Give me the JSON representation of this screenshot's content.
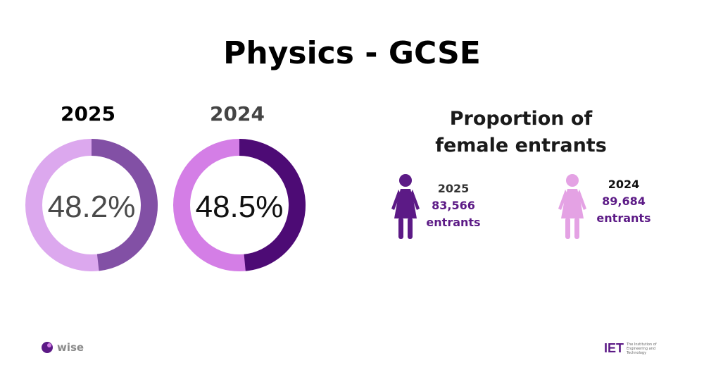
{
  "title": "Physics - GCSE",
  "colors": {
    "c2025_light": "#dca8ee",
    "c2025_dark": "#8250a5",
    "c2024_light": "#d47ee6",
    "c2024_dark": "#4d0b75",
    "figure_2025": "#5c1a86",
    "figure_2024": "#e4a2e4",
    "number_text": "#5c1a86"
  },
  "chart_data": [
    {
      "type": "pie",
      "title": "2025",
      "center_label": "48.2%",
      "values": [
        48.2,
        51.8
      ]
    },
    {
      "type": "pie",
      "title": "2024",
      "center_label": "48.5%",
      "values": [
        48.5,
        51.5
      ]
    }
  ],
  "proportion": {
    "title_line1": "Proportion of",
    "title_line2": "female entrants",
    "items": [
      {
        "year": "2025",
        "count": "83,566",
        "unit": "entrants"
      },
      {
        "year": "2024",
        "count": "89,684",
        "unit": "entrants"
      }
    ]
  },
  "footer": {
    "wise": "wise",
    "iet": "IET",
    "iet_sub_line1": "The Institution of",
    "iet_sub_line2": "Engineering and Technology"
  }
}
